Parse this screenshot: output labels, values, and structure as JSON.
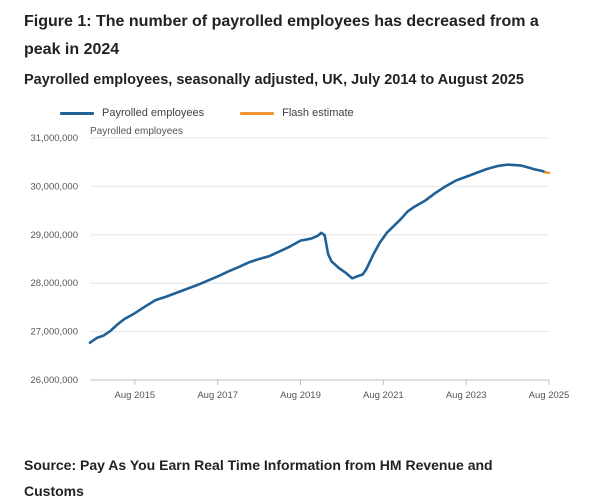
{
  "figure": {
    "title": "Figure 1: The number of payrolled employees has decreased from a peak in 2024",
    "subtitle": "Payrolled employees, seasonally adjusted, UK, July 2014 to August 2025",
    "source": "Source: Pay As You Earn Real Time Information from HM Revenue and Customs"
  },
  "legend": {
    "items": [
      {
        "label": "Payrolled employees",
        "color": "#206095"
      },
      {
        "label": "Flash estimate",
        "color": "#f39431"
      }
    ]
  },
  "chart_data": {
    "type": "line",
    "title": "",
    "ylabel": "Payrolled employees",
    "xlabel": "",
    "ylim": [
      26000000,
      31000000
    ],
    "xlim": [
      "2014-07",
      "2025-08"
    ],
    "yticks": [
      26000000,
      27000000,
      28000000,
      29000000,
      30000000,
      31000000
    ],
    "ytick_labels": [
      "26,000,000",
      "27,000,000",
      "28,000,000",
      "29,000,000",
      "30,000,000",
      "31,000,000"
    ],
    "xticks": [
      "2015-08",
      "2017-08",
      "2019-08",
      "2021-08",
      "2023-08",
      "2025-08"
    ],
    "xtick_labels": [
      "Aug 2015",
      "Aug 2017",
      "Aug 2019",
      "Aug 2021",
      "Aug 2023",
      "Aug 2025"
    ],
    "grid": "horizontal",
    "legend_position": "top-left",
    "series": [
      {
        "name": "Payrolled employees",
        "color": "#206095",
        "points": [
          [
            "2014-07",
            26770000
          ],
          [
            "2014-09",
            26870000
          ],
          [
            "2014-11",
            26920000
          ],
          [
            "2015-01",
            27020000
          ],
          [
            "2015-03",
            27150000
          ],
          [
            "2015-05",
            27260000
          ],
          [
            "2015-08",
            27380000
          ],
          [
            "2015-11",
            27520000
          ],
          [
            "2016-02",
            27650000
          ],
          [
            "2016-05",
            27720000
          ],
          [
            "2016-08",
            27800000
          ],
          [
            "2016-11",
            27880000
          ],
          [
            "2017-02",
            27960000
          ],
          [
            "2017-05",
            28050000
          ],
          [
            "2017-08",
            28140000
          ],
          [
            "2017-11",
            28240000
          ],
          [
            "2018-02",
            28330000
          ],
          [
            "2018-05",
            28430000
          ],
          [
            "2018-08",
            28500000
          ],
          [
            "2018-11",
            28560000
          ],
          [
            "2019-02",
            28660000
          ],
          [
            "2019-05",
            28760000
          ],
          [
            "2019-08",
            28880000
          ],
          [
            "2019-11",
            28920000
          ],
          [
            "2020-01",
            28980000
          ],
          [
            "2020-02",
            29040000
          ],
          [
            "2020-03",
            28990000
          ],
          [
            "2020-04",
            28600000
          ],
          [
            "2020-05",
            28450000
          ],
          [
            "2020-07",
            28320000
          ],
          [
            "2020-09",
            28220000
          ],
          [
            "2020-10",
            28160000
          ],
          [
            "2020-11",
            28100000
          ],
          [
            "2020-12",
            28130000
          ],
          [
            "2021-02",
            28180000
          ],
          [
            "2021-03",
            28280000
          ],
          [
            "2021-05",
            28580000
          ],
          [
            "2021-07",
            28840000
          ],
          [
            "2021-09",
            29040000
          ],
          [
            "2021-11",
            29180000
          ],
          [
            "2022-01",
            29320000
          ],
          [
            "2022-03",
            29480000
          ],
          [
            "2022-05",
            29580000
          ],
          [
            "2022-08",
            29700000
          ],
          [
            "2022-11",
            29860000
          ],
          [
            "2023-02",
            30000000
          ],
          [
            "2023-05",
            30120000
          ],
          [
            "2023-08",
            30200000
          ],
          [
            "2023-11",
            30280000
          ],
          [
            "2024-02",
            30360000
          ],
          [
            "2024-05",
            30420000
          ],
          [
            "2024-08",
            30450000
          ],
          [
            "2024-10",
            30440000
          ],
          [
            "2024-12",
            30430000
          ],
          [
            "2025-02",
            30390000
          ],
          [
            "2025-04",
            30350000
          ],
          [
            "2025-06",
            30320000
          ],
          [
            "2025-07",
            30290000
          ]
        ]
      },
      {
        "name": "Flash estimate",
        "color": "#f39431",
        "points": [
          [
            "2025-07",
            30290000
          ],
          [
            "2025-08",
            30280000
          ]
        ]
      }
    ]
  }
}
